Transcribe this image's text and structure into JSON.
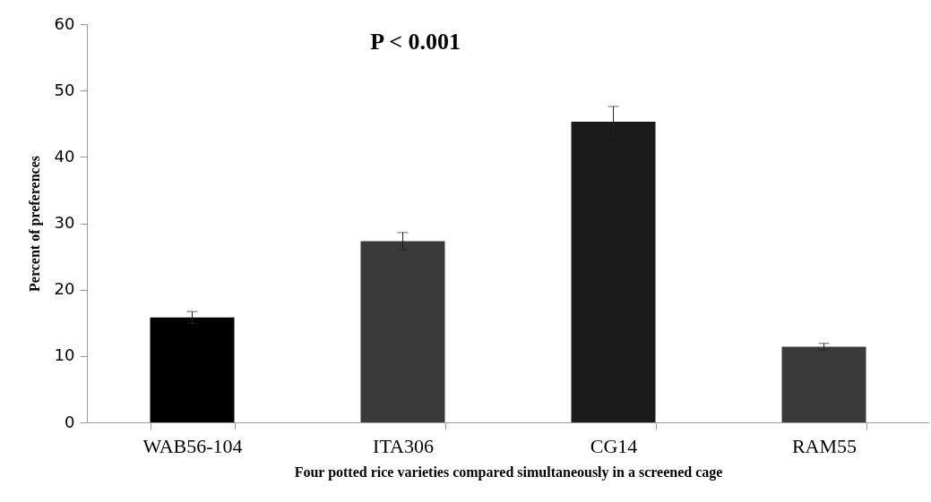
{
  "chart_data": {
    "type": "bar",
    "categories": [
      "WAB56-104",
      "ITA306",
      "CG14",
      "RAM55"
    ],
    "values": [
      15.8,
      27.3,
      45.3,
      11.4
    ],
    "errors": [
      0.9,
      1.3,
      2.3,
      0.5
    ],
    "colors": [
      "#000000",
      "#3a3a3a",
      "#1a1a1a",
      "#3a3a3a"
    ],
    "ylim": [
      0,
      60
    ],
    "yticks": [
      0,
      10,
      20,
      30,
      40,
      50,
      60
    ],
    "grid": false,
    "xlabel": "Four potted rice varieties compared simultaneously in a screened cage",
    "ylabel": "Percent of preferences",
    "annotations": [
      "P < 0.001"
    ]
  }
}
